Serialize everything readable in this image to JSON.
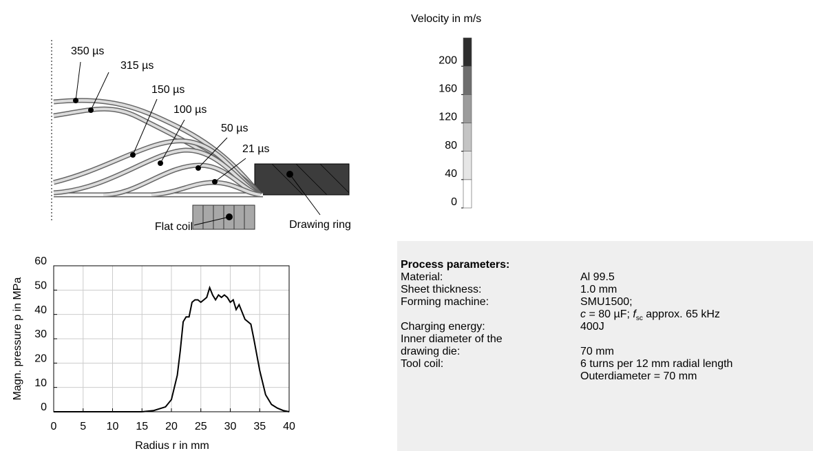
{
  "chart_data": [
    {
      "type": "line",
      "xlabel": "Radius r in mm",
      "ylabel": "Magn. pressure p in MPa",
      "x": [
        0,
        15,
        17,
        19,
        20,
        21,
        21.5,
        22,
        22.5,
        23,
        23.5,
        24,
        24.5,
        25,
        25.5,
        26,
        26.5,
        27,
        27.5,
        28,
        28.5,
        29,
        29.5,
        30,
        30.5,
        31,
        31.5,
        32,
        32.5,
        33,
        33.5,
        34,
        35,
        36,
        37,
        38,
        39,
        40
      ],
      "values": [
        0,
        0,
        0.5,
        2,
        5,
        15,
        25,
        37,
        39,
        39,
        45,
        46,
        46,
        45,
        46,
        47,
        51,
        48,
        46,
        48,
        47,
        48,
        47,
        45,
        46,
        42,
        44,
        41,
        38,
        37,
        36,
        30,
        17,
        7,
        3,
        1.5,
        0.5,
        0
      ],
      "color": "#000000",
      "xlim": [
        0,
        40
      ],
      "xticks": [
        0,
        5,
        10,
        15,
        20,
        25,
        30,
        35,
        40
      ],
      "ylim": [
        0,
        60
      ],
      "yticks": [
        0,
        10,
        20,
        30,
        40,
        50,
        60
      ],
      "grid": true
    },
    {
      "type": "colorbar",
      "title": "Velocity in m/s",
      "bins": [
        0,
        40,
        80,
        120,
        160,
        200,
        240
      ],
      "colors": [
        "#ffffff",
        "#e6e6e6",
        "#c4c4c4",
        "#9c9c9c",
        "#6e6e6e",
        "#2e2e2e"
      ],
      "ylim": [
        0,
        240
      ],
      "yticks": [
        0,
        40,
        80,
        120,
        160,
        200
      ]
    }
  ],
  "diagram": {
    "curves": [
      "350 µs",
      "315 µs",
      "150 µs",
      "100 µs",
      "50 µs",
      "21 µs"
    ],
    "coil": "Flat coil",
    "ring": "Drawing ring"
  },
  "parameters": {
    "title": "Process parameters:",
    "rows": [
      {
        "label": [
          "Material:"
        ],
        "value": [
          "Al 99.5"
        ]
      },
      {
        "label": [
          "Sheet thickness:"
        ],
        "value": [
          "1.0 mm"
        ]
      },
      {
        "label": [
          "Forming machine:"
        ],
        "value": [
          "SMU1500;"
        ]
      },
      {
        "label": [
          "Charging energy:"
        ],
        "value": [
          "400J"
        ]
      },
      {
        "label": [
          "Inner diameter of the",
          "drawing die:"
        ],
        "value": [
          "70 mm"
        ]
      },
      {
        "label": [
          "Tool coil:"
        ],
        "value": [
          "6 turns per 12 mm radial length",
          "Outerdiameter = 70 mm"
        ]
      }
    ],
    "machine_detail": {
      "c": "c",
      "c_value": " = 80 µF; ",
      "f": "f",
      "f_sub": "sc",
      "f_value": " approx. 65 kHz"
    }
  }
}
